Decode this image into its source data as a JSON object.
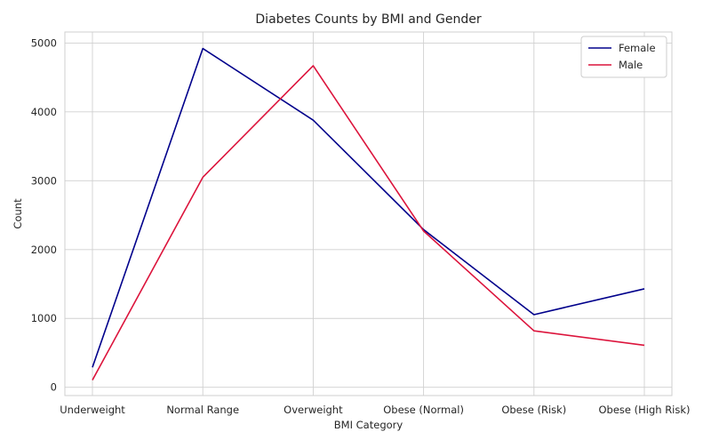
{
  "chart_data": {
    "type": "line",
    "title": "Diabetes Counts by BMI and Gender",
    "xlabel": "BMI Category",
    "ylabel": "Count",
    "categories": [
      "Underweight",
      "Normal Range",
      "Overweight",
      "Obese (Normal)",
      "Obese (Risk)",
      "Obese (High Risk)"
    ],
    "ylim": [
      -120,
      5160
    ],
    "yticks": [
      0,
      1000,
      2000,
      3000,
      4000,
      5000
    ],
    "grid": true,
    "legend_position": "top-right",
    "series": [
      {
        "name": "Female",
        "color": "#00008b",
        "values": [
          290,
          4920,
          3880,
          2290,
          1055,
          1430
        ]
      },
      {
        "name": "Male",
        "color": "#dc143c",
        "values": [
          105,
          3050,
          4670,
          2270,
          820,
          610
        ]
      }
    ]
  }
}
